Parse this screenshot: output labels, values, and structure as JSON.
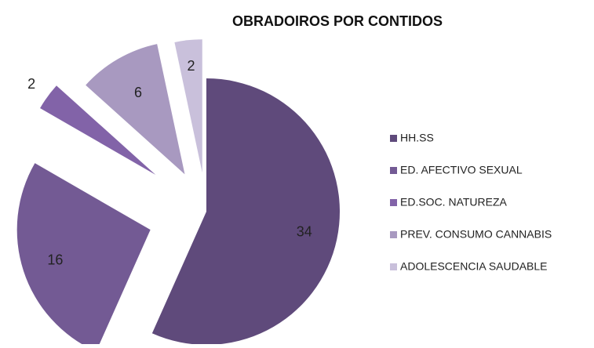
{
  "chart_data": {
    "type": "pie",
    "title": "OBRADOIROS POR CONTIDOS",
    "categories": [
      "HH.SS",
      "ED. AFECTIVO SEXUAL",
      "ED.SOC. NATUREZA",
      "PREV. CONSUMO CANNABIS",
      "ADOLESCENCIA SAUDABLE"
    ],
    "values": [
      34,
      16,
      2,
      6,
      2
    ],
    "colors": [
      "#5f4a7b",
      "#735a94",
      "#8263a8",
      "#a899c0",
      "#c9c0db"
    ],
    "legend": "right"
  }
}
